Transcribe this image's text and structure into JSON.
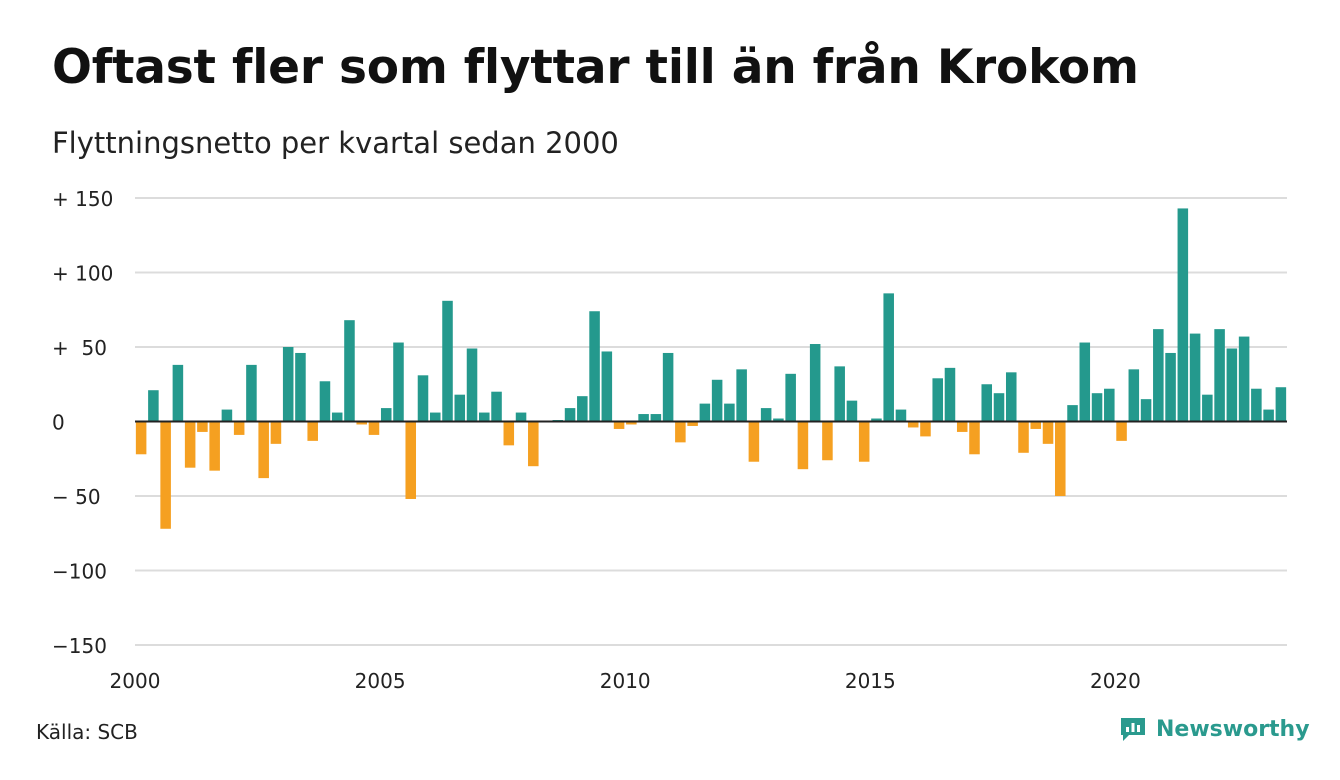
{
  "title": "Oftast fler som flyttar till än från Krokom",
  "subtitle": "Flyttningsnetto per kvartal sedan 2000",
  "source": "Källa: SCB",
  "brand": {
    "name": "Newsworthy",
    "icon": "newsworthy-logo-icon",
    "color": "#2a9a8e"
  },
  "colors": {
    "positive": "#24998d",
    "negative": "#f5a021",
    "grid": "#dcdcdc",
    "axis": "#222222"
  },
  "chart_data": {
    "type": "bar",
    "ylim": [
      -150,
      150
    ],
    "yticks": [
      150,
      100,
      50,
      0,
      -50,
      -100,
      -150
    ],
    "ytick_labels": [
      "+ 150",
      "+ 100",
      "+  50",
      "0",
      "− 50",
      "−100",
      "−150"
    ],
    "xticks": [
      2000,
      2005,
      2010,
      2015,
      2020
    ],
    "xtick_labels": [
      "2000",
      "2005",
      "2010",
      "2015",
      "2020"
    ],
    "x_start": 2000,
    "periods_per_year": 4,
    "grid": true,
    "values": [
      -22,
      21,
      -72,
      38,
      -31,
      -7,
      -33,
      8,
      -9,
      38,
      -38,
      -15,
      50,
      46,
      -13,
      27,
      6,
      68,
      -2,
      -9,
      9,
      53,
      -52,
      31,
      6,
      81,
      18,
      49,
      6,
      20,
      -16,
      6,
      -30,
      0,
      1,
      9,
      17,
      74,
      47,
      -5,
      -2,
      5,
      5,
      46,
      -14,
      -3,
      12,
      28,
      12,
      35,
      -27,
      9,
      2,
      32,
      -32,
      52,
      -26,
      37,
      14,
      -27,
      2,
      86,
      8,
      -4,
      -10,
      29,
      36,
      -7,
      -22,
      25,
      19,
      33,
      -21,
      -5,
      -15,
      -50,
      11,
      53,
      19,
      22,
      -13,
      35,
      15,
      62,
      46,
      143,
      59,
      18,
      62,
      49,
      57,
      22,
      8,
      23
    ]
  }
}
